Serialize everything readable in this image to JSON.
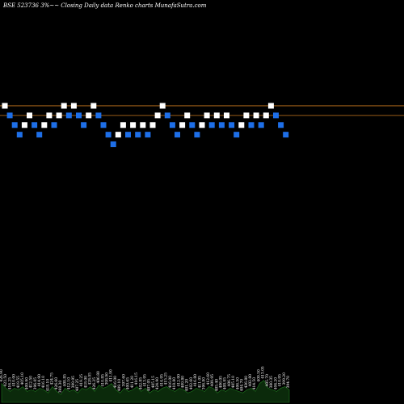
{
  "chart_data": {
    "type": "renko",
    "title": "BSE 523736  3%~~  Closing Daily data  Renko  charts MunafaSutra.com",
    "colors": {
      "background": "#000000",
      "up_brick": "#ffffff",
      "down_brick": "#1e6fe8",
      "reference_line": "#c8781e",
      "volume_fill": "#0b2a0b",
      "volume_stroke": "#1f7a1f",
      "label_text": "#ffffff"
    },
    "price_ylim": [
      0,
      42
    ],
    "reference_lines": [
      31,
      30
    ],
    "bricks": [
      {
        "dir": "up",
        "level": 31
      },
      {
        "dir": "down",
        "level": 30
      },
      {
        "dir": "down",
        "level": 29
      },
      {
        "dir": "down",
        "level": 28
      },
      {
        "dir": "up",
        "level": 29
      },
      {
        "dir": "up",
        "level": 30
      },
      {
        "dir": "down",
        "level": 29
      },
      {
        "dir": "down",
        "level": 28
      },
      {
        "dir": "up",
        "level": 29
      },
      {
        "dir": "up",
        "level": 30
      },
      {
        "dir": "down",
        "level": 29
      },
      {
        "dir": "up",
        "level": 30
      },
      {
        "dir": "up",
        "level": 31
      },
      {
        "dir": "down",
        "level": 30
      },
      {
        "dir": "up",
        "level": 31
      },
      {
        "dir": "down",
        "level": 30
      },
      {
        "dir": "down",
        "level": 29
      },
      {
        "dir": "up",
        "level": 30
      },
      {
        "dir": "up",
        "level": 31
      },
      {
        "dir": "down",
        "level": 30
      },
      {
        "dir": "down",
        "level": 29
      },
      {
        "dir": "down",
        "level": 28
      },
      {
        "dir": "down",
        "level": 27
      },
      {
        "dir": "up",
        "level": 28
      },
      {
        "dir": "up",
        "level": 29
      },
      {
        "dir": "down",
        "level": 28
      },
      {
        "dir": "up",
        "level": 29
      },
      {
        "dir": "down",
        "level": 28
      },
      {
        "dir": "up",
        "level": 29
      },
      {
        "dir": "down",
        "level": 28
      },
      {
        "dir": "up",
        "level": 29
      },
      {
        "dir": "up",
        "level": 30
      },
      {
        "dir": "up",
        "level": 31
      },
      {
        "dir": "down",
        "level": 30
      },
      {
        "dir": "down",
        "level": 29
      },
      {
        "dir": "down",
        "level": 28
      },
      {
        "dir": "up",
        "level": 29
      },
      {
        "dir": "up",
        "level": 30
      },
      {
        "dir": "down",
        "level": 29
      },
      {
        "dir": "down",
        "level": 28
      },
      {
        "dir": "up",
        "level": 29
      },
      {
        "dir": "up",
        "level": 30
      },
      {
        "dir": "down",
        "level": 29
      },
      {
        "dir": "up",
        "level": 30
      },
      {
        "dir": "down",
        "level": 29
      },
      {
        "dir": "up",
        "level": 30
      },
      {
        "dir": "down",
        "level": 29
      },
      {
        "dir": "down",
        "level": 28
      },
      {
        "dir": "up",
        "level": 29
      },
      {
        "dir": "up",
        "level": 30
      },
      {
        "dir": "down",
        "level": 29
      },
      {
        "dir": "up",
        "level": 30
      },
      {
        "dir": "down",
        "level": 29
      },
      {
        "dir": "up",
        "level": 30
      },
      {
        "dir": "up",
        "level": 31
      },
      {
        "dir": "down",
        "level": 30
      },
      {
        "dir": "down",
        "level": 29
      },
      {
        "dir": "down",
        "level": 28
      }
    ],
    "volume_labels": [
      "426.90",
      "423.50",
      "416.25",
      "410.00",
      "419.55",
      "405.10",
      "409.90",
      "412.50",
      "396.05",
      "414.90",
      "416.10",
      "418.10",
      "424.75",
      "426.60",
      "398.30",
      "408.85",
      "412.10",
      "399.95",
      "407.25",
      "419.25",
      "418.00",
      "428.05",
      "426.25",
      "406.80",
      "410.85",
      "398.90",
      "411.90",
      "416.00",
      "409.10",
      "397.60",
      "400.65",
      "411.20",
      "416.15",
      "402.85",
      "413.95",
      "407.05",
      "405.15",
      "424.90",
      "414.95",
      "415.25",
      "416.00",
      "418.80",
      "412.90",
      "409.80",
      "401.20",
      "402.60",
      "416.80",
      "411.05",
      "396.80",
      "412.60",
      "409.95",
      "405.40",
      "406.05",
      "408.95",
      "406.75",
      "405.10",
      "406.50",
      "404.70",
      "436.80",
      "402.80",
      "414.50",
      "409.50",
      "413.05",
      "405.70",
      "380.35",
      "404.20",
      "410.95",
      "399.20",
      "394.70"
    ],
    "volume_values": [
      12,
      9,
      7,
      9,
      8,
      10,
      7,
      8,
      7,
      9,
      8,
      6,
      10,
      7,
      5,
      9,
      7,
      8,
      6,
      9,
      8,
      10,
      7,
      11,
      9,
      10,
      12,
      8,
      6,
      9,
      7,
      8,
      10,
      7,
      9,
      6,
      8,
      7,
      9,
      10,
      8,
      7,
      9,
      8,
      6,
      7,
      9,
      8,
      7,
      10,
      9,
      6,
      8,
      7,
      9,
      8,
      7,
      6,
      8,
      9,
      7,
      12,
      14,
      9,
      8,
      7,
      9,
      10,
      8
    ],
    "volume_ylim": [
      0,
      40
    ]
  }
}
